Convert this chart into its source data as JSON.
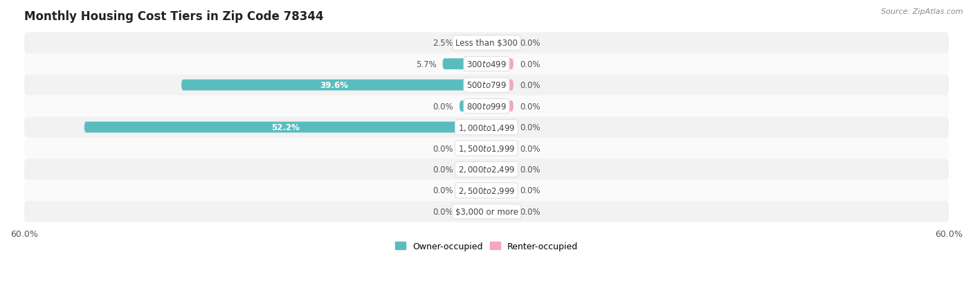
{
  "title": "Monthly Housing Cost Tiers in Zip Code 78344",
  "source": "Source: ZipAtlas.com",
  "categories": [
    "Less than $300",
    "$300 to $499",
    "$500 to $799",
    "$800 to $999",
    "$1,000 to $1,499",
    "$1,500 to $1,999",
    "$2,000 to $2,499",
    "$2,500 to $2,999",
    "$3,000 or more"
  ],
  "owner_values": [
    2.5,
    5.7,
    39.6,
    0.0,
    52.2,
    0.0,
    0.0,
    0.0,
    0.0
  ],
  "renter_values": [
    0.0,
    0.0,
    0.0,
    0.0,
    0.0,
    0.0,
    0.0,
    0.0,
    0.0
  ],
  "owner_color": "#5BBCBF",
  "renter_color": "#F4A8BA",
  "row_bg_even": "#F2F2F2",
  "row_bg_odd": "#FAFAFA",
  "xlim": 60.0,
  "min_stub": 3.5,
  "title_fontsize": 12,
  "label_fontsize": 8.5,
  "tick_fontsize": 9,
  "bar_height": 0.52,
  "legend_labels": [
    "Owner-occupied",
    "Renter-occupied"
  ],
  "background_color": "#FFFFFF",
  "value_label_color": "#555555",
  "value_label_inside_color": "#FFFFFF",
  "category_label_color": "#444444"
}
